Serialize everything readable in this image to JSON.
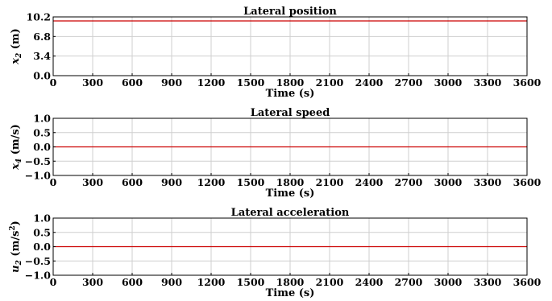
{
  "chart_data": [
    {
      "type": "line",
      "title": "Lateral position",
      "xlabel": "Time (s)",
      "ylabel": {
        "var": "x",
        "sub": "2",
        "unit": " (m)",
        "sup": ""
      },
      "xlim": [
        0,
        3600
      ],
      "ylim": [
        0,
        10.2
      ],
      "xticks": [
        "0",
        "300",
        "600",
        "900",
        "1200",
        "1500",
        "1800",
        "2100",
        "2400",
        "2700",
        "3000",
        "3300",
        "3600"
      ],
      "yticks": [
        "0.0",
        "3.4",
        "6.8",
        "10.2"
      ],
      "grid": true,
      "series_color": "#cc0000",
      "series": [
        {
          "x": [
            0,
            3600
          ],
          "y": [
            9.5,
            9.5
          ]
        }
      ]
    },
    {
      "type": "line",
      "title": "Lateral speed",
      "xlabel": "Time (s)",
      "ylabel": {
        "var": "x",
        "sub": "4",
        "unit": " (m/s)",
        "sup": ""
      },
      "xlim": [
        0,
        3600
      ],
      "ylim": [
        -1.0,
        1.0
      ],
      "xticks": [
        "0",
        "300",
        "600",
        "900",
        "1200",
        "1500",
        "1800",
        "2100",
        "2400",
        "2700",
        "3000",
        "3300",
        "3600"
      ],
      "yticks": [
        "−1.0",
        "−0.5",
        "0.0",
        "0.5",
        "1.0"
      ],
      "grid": true,
      "series_color": "#cc0000",
      "series": [
        {
          "x": [
            0,
            3600
          ],
          "y": [
            0,
            0
          ]
        }
      ]
    },
    {
      "type": "line",
      "title": "Lateral acceleration",
      "xlabel": "Time (s)",
      "ylabel": {
        "var": "u",
        "sub": "2",
        "unit": " (m/s",
        "sup": "2"
      },
      "xlim": [
        0,
        3600
      ],
      "ylim": [
        -1.0,
        1.0
      ],
      "xticks": [
        "0",
        "300",
        "600",
        "900",
        "1200",
        "1500",
        "1800",
        "2100",
        "2400",
        "2700",
        "3000",
        "3300",
        "3600"
      ],
      "yticks": [
        "−1.0",
        "−0.5",
        "0.0",
        "0.5",
        "1.0"
      ],
      "grid": true,
      "series_color": "#cc0000",
      "series": [
        {
          "x": [
            0,
            3600
          ],
          "y": [
            0,
            0
          ]
        }
      ]
    }
  ]
}
